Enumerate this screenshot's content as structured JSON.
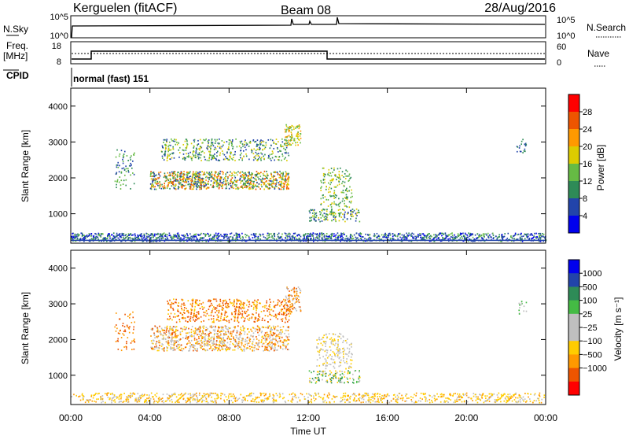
{
  "header": {
    "station": "Kerguelen (fitACF)",
    "beam": "Beam 08",
    "date": "28/Aug/2016"
  },
  "top_panel": {
    "left_label": "N.Sky",
    "left_ticks": [
      "10^5",
      "10^0"
    ],
    "right_ticks": [
      "10^5",
      "10^0"
    ],
    "right_label": "N.Search"
  },
  "freq_panel": {
    "left_label_1": "Freq.",
    "left_label_2": "[MHz]",
    "left_ticks": [
      "18",
      "8"
    ],
    "right_ticks": [
      "60",
      "0"
    ],
    "right_label": "Nave",
    "cpid_label": "CPID",
    "mode_text": "normal (fast) 151"
  },
  "colors": {
    "power_scale": [
      "#0000ee",
      "#2244aa",
      "#2e8b57",
      "#66bb44",
      "#ddcc00",
      "#ff9900",
      "#ee5500",
      "#ff0000"
    ],
    "velocity_scale": [
      "#ff0000",
      "#ee5500",
      "#ff9900",
      "#ffcc00",
      "#bfbfbf",
      "#bfbfbf",
      "#44bb44",
      "#2e8b57",
      "#2244aa",
      "#0000ee"
    ]
  },
  "chart_data": [
    {
      "type": "heatmap",
      "panel": "power",
      "ylabel": "Slant Range [km]",
      "yticks": [
        "1000",
        "2000",
        "3000",
        "4000"
      ],
      "ylim": [
        180,
        4500
      ],
      "colorbar_label": "Power [dB]",
      "colorbar_ticks": [
        "4",
        "8",
        "12",
        "16",
        "20",
        "24",
        "28"
      ],
      "colorbar_range": [
        0,
        30
      ]
    },
    {
      "type": "heatmap",
      "panel": "velocity",
      "ylabel": "Slant Range [km]",
      "yticks": [
        "1000",
        "2000",
        "3000",
        "4000"
      ],
      "ylim": [
        180,
        4500
      ],
      "xlabel": "Time UT",
      "xticks": [
        "00:00",
        "04:00",
        "08:00",
        "12:00",
        "16:00",
        "20:00",
        "00:00"
      ],
      "colorbar_label": "Velocity [m s⁻¹]",
      "colorbar_ticks": [
        "1000",
        "500",
        "100",
        "25",
        "−25",
        "−100",
        "−500",
        "−1000"
      ]
    }
  ]
}
